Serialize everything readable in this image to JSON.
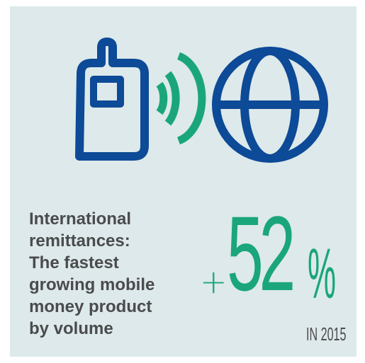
{
  "description": {
    "lines": [
      "International",
      "remittances:",
      "The fastest",
      "growing mobile",
      "money product",
      "by volume"
    ]
  },
  "stat": {
    "sign": "+",
    "value": "52",
    "unit": "%",
    "period": "IN 2015"
  },
  "icons": {
    "phone": "mobile-phone-icon",
    "signal": "wireless-signal-icon",
    "globe": "globe-icon"
  },
  "colors": {
    "background": "#dde9ea",
    "navy": "#0d4a97",
    "green": "#1aa67a",
    "text": "#4b4b4d"
  }
}
